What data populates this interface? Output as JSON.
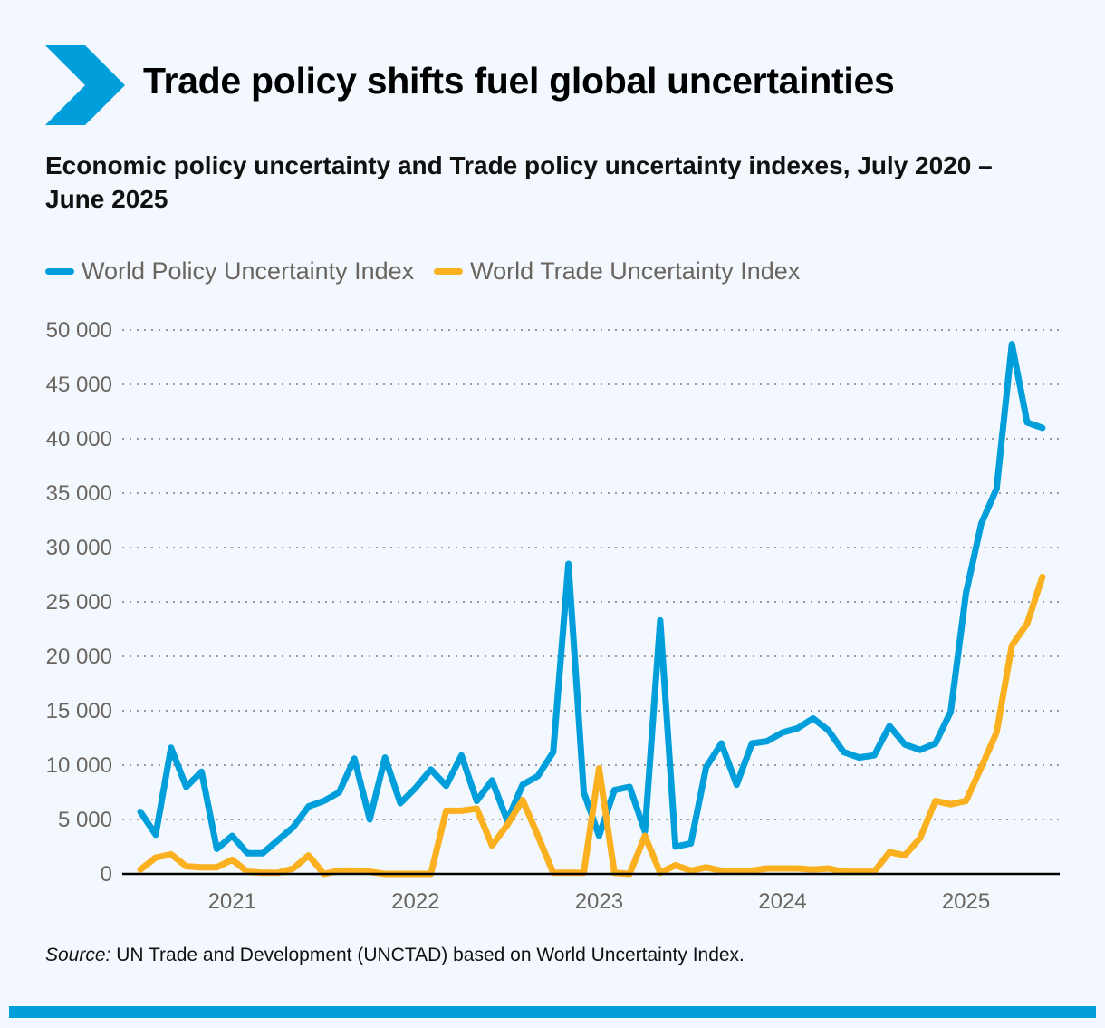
{
  "title": "Trade policy shifts fuel global uncertainties",
  "subtitle": "Economic policy uncertainty and Trade policy uncertainty indexes, July 2020 – June 2025",
  "source_label": "Source:",
  "source_text": " UN Trade and Development (UNCTAD) based on World Uncertainty Index.",
  "colors": {
    "accent": "#009edb",
    "blue": "#009edb",
    "orange": "#fbb020",
    "background": "#f2f8fe"
  },
  "icon": "chevron-right-icon",
  "chart_data": {
    "type": "line",
    "title": "Economic policy uncertainty and Trade policy uncertainty indexes, July 2020 – June 2025",
    "x_start": "2020-07",
    "x_end": "2025-06",
    "frequency": "monthly",
    "x_ticks": [
      "2021",
      "2022",
      "2023",
      "2024",
      "2025"
    ],
    "y_ticks": [
      "0",
      "5 000",
      "10 000",
      "15 000",
      "20 000",
      "25 000",
      "30 000",
      "35 000",
      "40 000",
      "45 000",
      "50 000"
    ],
    "ylim": [
      0,
      50000
    ],
    "grid": "horizontal dotted",
    "legend": "top-left",
    "series": [
      {
        "name": "World Policy Uncertainty Index",
        "color": "#009edb",
        "values": [
          5700,
          3600,
          11600,
          8000,
          9400,
          2300,
          3500,
          1900,
          1900,
          3100,
          4300,
          6200,
          6700,
          7500,
          10600,
          5000,
          10700,
          6500,
          7900,
          9600,
          8100,
          10900,
          6700,
          8600,
          4900,
          8200,
          9000,
          11200,
          28500,
          7500,
          3500,
          7700,
          8000,
          3900,
          23300,
          2500,
          2800,
          9800,
          12000,
          8200,
          12000,
          12200,
          13000,
          13400,
          14300,
          13200,
          11200,
          10700,
          10900,
          13600,
          11900,
          11400,
          12000,
          14900,
          25800,
          32200,
          35400,
          48700,
          41500,
          41000
        ]
      },
      {
        "name": "World Trade Uncertainty Index",
        "color": "#fbb020",
        "values": [
          400,
          1500,
          1800,
          700,
          600,
          600,
          1300,
          200,
          100,
          100,
          500,
          1700,
          0,
          300,
          300,
          200,
          0,
          0,
          0,
          0,
          5800,
          5800,
          6000,
          2600,
          4500,
          6800,
          3500,
          100,
          100,
          100,
          9700,
          100,
          0,
          3500,
          100,
          800,
          300,
          600,
          300,
          200,
          300,
          500,
          500,
          500,
          400,
          500,
          200,
          200,
          200,
          2000,
          1700,
          3300,
          6700,
          6400,
          6700,
          9800,
          13000,
          21000,
          23000,
          27300
        ]
      }
    ]
  }
}
